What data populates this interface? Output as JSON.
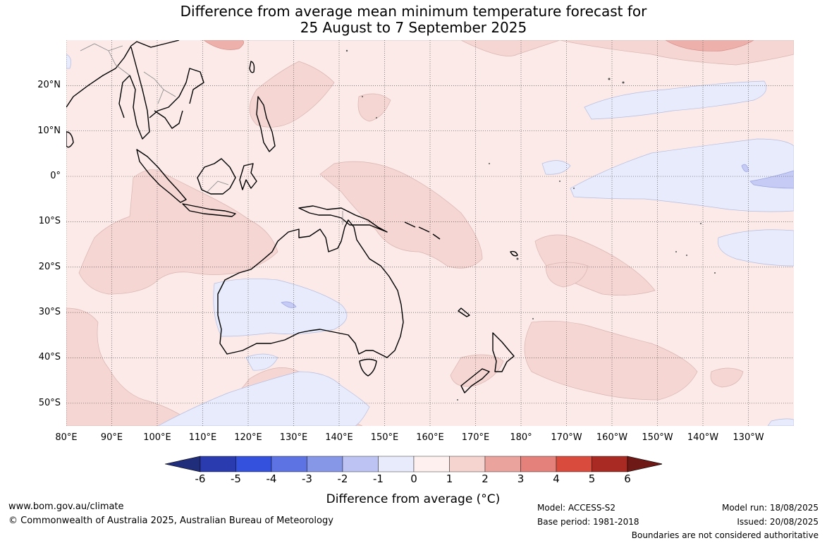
{
  "title": {
    "line1": "Difference from average mean minimum temperature forecast for",
    "line2": "25 August to 7 September 2025"
  },
  "map": {
    "region": "Australia, Maritime Continent and South-West Pacific",
    "lon_range_east": [
      80,
      240
    ],
    "lat_range": [
      -55,
      30
    ],
    "gridlines": "dotted",
    "lat_ticks": [
      "20°N",
      "10°N",
      "0°",
      "10°S",
      "20°S",
      "30°S",
      "40°S",
      "50°S"
    ],
    "lon_ticks": [
      "80°E",
      "90°E",
      "100°E",
      "110°E",
      "120°E",
      "130°E",
      "140°E",
      "150°E",
      "160°E",
      "170°E",
      "180°",
      "170°W",
      "160°W",
      "150°W",
      "140°W",
      "130°W"
    ],
    "background_anomaly_range": "0 to 1",
    "colors": {
      "anom_0_1": "#fbeae8",
      "anom_1_2": "#f5d6d3",
      "anom_2_3": "#eeb0ab",
      "anom_neg1_0": "#e7ebfb",
      "anom_neg2_neg1": "#c5cbf4",
      "coast": "#000000",
      "border": "#888888"
    }
  },
  "colorbar": {
    "labels": [
      "-6",
      "-5",
      "-4",
      "-3",
      "-2",
      "-1",
      "0",
      "1",
      "2",
      "3",
      "4",
      "5",
      "6"
    ],
    "colors": [
      "#1f2d7a",
      "#2a3bb0",
      "#3451dd",
      "#5d73e4",
      "#8797e8",
      "#bdc4f4",
      "#e8ebfc",
      "#fdf0ee",
      "#f5d3cf",
      "#eba49d",
      "#e3817a",
      "#d94b3c",
      "#a82a23",
      "#6e1915"
    ],
    "title": "Difference from average (°C)"
  },
  "footer": {
    "url": "www.bom.gov.au/climate",
    "copyright": "© Commonwealth of Australia 2025, Australian Bureau of Meteorology",
    "model": "Model: ACCESS-S2",
    "base_period": "Base period: 1981-2018",
    "model_run": "Model run: 18/08/2025",
    "issued": "Issued: 20/08/2025",
    "disclaimer": "Boundaries are not considered authoritative"
  }
}
